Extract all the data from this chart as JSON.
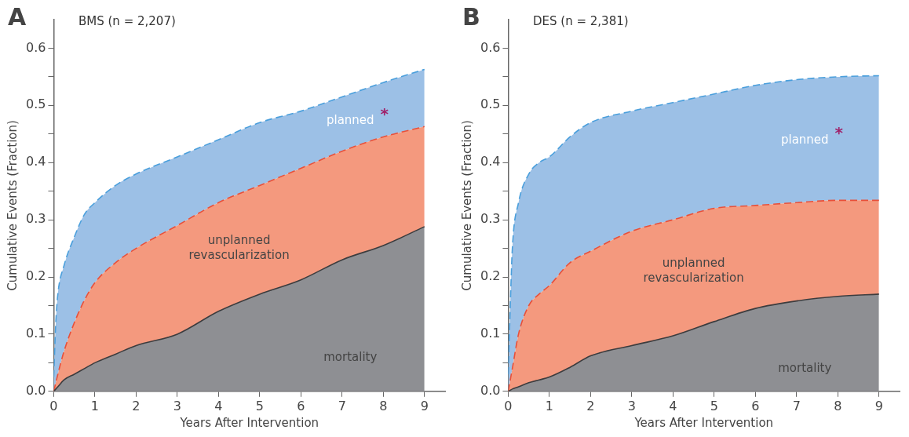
{
  "chart_data": [
    {
      "type": "area",
      "title": "A",
      "subtitle": "BMS (n = 2,207)",
      "xlabel": "Years After Intervention",
      "ylabel": "Cumulative Events (Fraction)",
      "x": [
        0,
        0.05,
        0.1,
        0.25,
        0.5,
        0.75,
        1,
        1.5,
        2,
        3,
        4,
        5,
        6,
        7,
        8,
        9
      ],
      "series": [
        {
          "name": "mortality",
          "color": "#8e8f93",
          "line_style": "solid",
          "values": [
            0,
            0.004,
            0.008,
            0.02,
            0.03,
            0.04,
            0.05,
            0.065,
            0.08,
            0.1,
            0.14,
            0.17,
            0.195,
            0.23,
            0.255,
            0.288
          ]
        },
        {
          "name": "unplanned revascularization",
          "color": "#f4997e",
          "line_style": "dashed",
          "values": [
            0,
            0.015,
            0.03,
            0.07,
            0.12,
            0.16,
            0.19,
            0.225,
            0.25,
            0.29,
            0.33,
            0.36,
            0.39,
            0.42,
            0.445,
            0.463
          ]
        },
        {
          "name": "planned",
          "color": "#9cc0e6",
          "line_style": "dashed",
          "values": [
            0.025,
            0.12,
            0.17,
            0.22,
            0.27,
            0.31,
            0.33,
            0.36,
            0.38,
            0.41,
            0.44,
            0.47,
            0.49,
            0.515,
            0.54,
            0.563
          ]
        }
      ],
      "annotations": [
        "*"
      ],
      "xlim": [
        0,
        9.5
      ],
      "xticks": [
        0,
        1,
        2,
        3,
        4,
        5,
        6,
        7,
        8,
        9
      ],
      "ylim": [
        0,
        0.65
      ],
      "yticks": [
        {
          "value": 0,
          "label": "0.0"
        },
        {
          "value": 0.05,
          "label": null
        },
        0.1,
        {
          "value": 0.15,
          "label": null
        },
        0.2,
        {
          "value": 0.25,
          "label": null
        },
        0.3,
        {
          "value": 0.35,
          "label": null
        },
        0.4,
        {
          "value": 0.45,
          "label": null
        },
        0.5,
        {
          "value": 0.55,
          "label": null
        },
        0.6
      ],
      "grid": false,
      "legend": false,
      "marker": "none"
    },
    {
      "type": "area",
      "title": "B",
      "subtitle": "DES (n = 2,381)",
      "xlabel": "Years After Intervention",
      "ylabel": "Cumulative Events (Fraction)",
      "x": [
        0,
        0.05,
        0.1,
        0.25,
        0.5,
        0.75,
        1,
        1.5,
        2,
        3,
        4,
        5,
        6,
        7,
        8,
        9
      ],
      "series": [
        {
          "name": "mortality",
          "color": "#8e8f93",
          "line_style": "solid",
          "values": [
            0,
            0.002,
            0.004,
            0.008,
            0.015,
            0.02,
            0.025,
            0.042,
            0.062,
            0.08,
            0.097,
            0.122,
            0.145,
            0.158,
            0.166,
            0.17
          ]
        },
        {
          "name": "unplanned revascularization",
          "color": "#f4997e",
          "line_style": "dashed",
          "values": [
            0,
            0.02,
            0.04,
            0.1,
            0.15,
            0.17,
            0.185,
            0.225,
            0.245,
            0.28,
            0.3,
            0.32,
            0.325,
            0.33,
            0.334,
            0.334
          ]
        },
        {
          "name": "planned",
          "color": "#9cc0e6",
          "line_style": "dashed",
          "values": [
            0.03,
            0.15,
            0.25,
            0.33,
            0.38,
            0.4,
            0.41,
            0.445,
            0.47,
            0.49,
            0.505,
            0.52,
            0.535,
            0.545,
            0.55,
            0.552
          ]
        }
      ],
      "annotations": [
        "*"
      ],
      "xlim": [
        0,
        9.5
      ],
      "xticks": [
        0,
        1,
        2,
        3,
        4,
        5,
        6,
        7,
        8,
        9
      ],
      "ylim": [
        0,
        0.65
      ],
      "yticks": [
        {
          "value": 0,
          "label": "0.0"
        },
        {
          "value": 0.05,
          "label": null
        },
        0.1,
        {
          "value": 0.15,
          "label": null
        },
        0.2,
        {
          "value": 0.25,
          "label": null
        },
        0.3,
        {
          "value": 0.35,
          "label": null
        },
        0.4,
        {
          "value": 0.45,
          "label": null
        },
        0.5,
        {
          "value": 0.55,
          "label": null
        },
        0.6
      ],
      "grid": false,
      "legend": false,
      "marker": "none"
    }
  ]
}
